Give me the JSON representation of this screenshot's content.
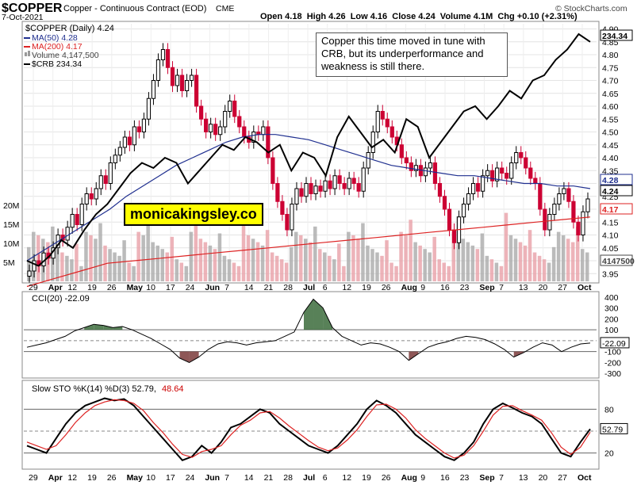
{
  "header": {
    "symbol": "$COPPER",
    "description": "Copper - Continuous Contract (EOD)",
    "exchange": "CME",
    "date": "7-Oct-2021",
    "ohlc": "Open 4.18  High 4.26  Low 4.16  Close 4.24  Volume 4.1M  Chg +0.10 (+2.31%)",
    "brand": "© StockCharts.com"
  },
  "legend": {
    "main": "$COPPER (Daily) 4.24",
    "ma50": "MA(50) 4.28",
    "ma200": "MA(200) 4.17",
    "volume": "Volume 4,147,500",
    "crb": "$CRB 234.34"
  },
  "annotation": "Copper this time moved in tune with CRB, but its underperformance and weakness is still there.",
  "watermark": "monicakingsley.co",
  "cci_label": "CCI(20) -22.09",
  "sto_label": {
    "k": "Slow STO %K(14) %D(3) 52.79,",
    "d": "48.64"
  },
  "colors": {
    "up": "#000000",
    "down": "#cc0033",
    "ma50": "#1f2f8f",
    "ma200": "#dd2222",
    "crb": "#000000",
    "cci_fill": "#3b6b3b",
    "cci_neg": "#7a3a3a"
  },
  "chart_data": [
    {
      "type": "candlestick",
      "title": "$COPPER (Daily) 4.24",
      "x_tick_labels": [
        "29",
        "Apr",
        "12",
        "19",
        "26",
        "May",
        "10",
        "17",
        "24",
        "Jun",
        "7",
        "14",
        "21",
        "28",
        "Jul",
        "6",
        "12",
        "19",
        "26",
        "Aug",
        "9",
        "16",
        "23",
        "Sep",
        "7",
        "13",
        "20",
        "27",
        "Oct"
      ],
      "y_tick_labels": [
        "3.95",
        "4.00",
        "4.05",
        "4.10",
        "4.15",
        "4.20",
        "4.25",
        "4.30",
        "4.35",
        "4.40",
        "4.45",
        "4.50",
        "4.55",
        "4.60",
        "4.65",
        "4.70",
        "4.75",
        "4.80",
        "4.85",
        "4.90"
      ],
      "ylim": [
        3.92,
        4.92
      ],
      "last_labels": {
        "ma50": "4.28",
        "close": "4.24",
        "ma200": "4.17",
        "crb": "234.34",
        "volume": "4147500"
      },
      "close_series": [
        3.96,
        4.0,
        3.98,
        4.03,
        4.01,
        4.05,
        4.1,
        4.08,
        4.13,
        4.18,
        4.14,
        4.22,
        4.26,
        4.24,
        4.28,
        4.33,
        4.3,
        4.38,
        4.41,
        4.44,
        4.48,
        4.45,
        4.52,
        4.5,
        4.55,
        4.63,
        4.7,
        4.78,
        4.82,
        4.75,
        4.68,
        4.72,
        4.66,
        4.7,
        4.72,
        4.6,
        4.55,
        4.5,
        4.53,
        4.49,
        4.52,
        4.58,
        4.62,
        4.56,
        4.52,
        4.48,
        4.46,
        4.5,
        4.49,
        4.52,
        4.4,
        4.3,
        4.23,
        4.18,
        4.12,
        4.22,
        4.28,
        4.25,
        4.3,
        4.26,
        4.29,
        4.27,
        4.31,
        4.28,
        4.33,
        4.3,
        4.28,
        4.32,
        4.3,
        4.27,
        4.36,
        4.42,
        4.5,
        4.58,
        4.55,
        4.52,
        4.48,
        4.45,
        4.4,
        4.38,
        4.35,
        4.37,
        4.33,
        4.36,
        4.38,
        4.3,
        4.25,
        4.2,
        4.12,
        4.07,
        4.17,
        4.22,
        4.26,
        4.3,
        4.27,
        4.33,
        4.35,
        4.31,
        4.36,
        4.34,
        4.32,
        4.38,
        4.42,
        4.4,
        4.36,
        4.32,
        4.3,
        4.2,
        4.12,
        4.18,
        4.22,
        4.26,
        4.28,
        4.23,
        4.15,
        4.1,
        4.19,
        4.24
      ],
      "ma50_series": [
        4.0,
        4.04,
        4.08,
        4.12,
        4.16,
        4.2,
        4.25,
        4.29,
        4.33,
        4.37,
        4.4,
        4.43,
        4.46,
        4.48,
        4.49,
        4.49,
        4.48,
        4.47,
        4.45,
        4.43,
        4.41,
        4.39,
        4.37,
        4.36,
        4.35,
        4.34,
        4.33,
        4.33,
        4.32,
        4.31,
        4.3,
        4.3,
        4.29,
        4.29,
        4.28
      ],
      "ma200_series": [
        3.9,
        3.93,
        3.96,
        3.99,
        4.0,
        4.01,
        4.02,
        4.03,
        4.04,
        4.05,
        4.06,
        4.07,
        4.08,
        4.09,
        4.1,
        4.11,
        4.12,
        4.13,
        4.14,
        4.15,
        4.16,
        4.17
      ],
      "crb_series": [
        4.0,
        3.98,
        4.02,
        4.08,
        4.05,
        4.12,
        4.18,
        4.22,
        4.28,
        4.34,
        4.38,
        4.36,
        4.4,
        4.38,
        4.3,
        4.35,
        4.4,
        4.45,
        4.43,
        4.48,
        4.46,
        4.42,
        4.45,
        4.35,
        4.42,
        4.4,
        4.33,
        4.48,
        4.56,
        4.5,
        4.44,
        4.47,
        4.42,
        4.55,
        4.52,
        4.4,
        4.46,
        4.52,
        4.58,
        4.6,
        4.55,
        4.6,
        4.66,
        4.63,
        4.7,
        4.72,
        4.78,
        4.82,
        4.88,
        4.85
      ]
    },
    {
      "type": "bar",
      "title": "Volume 4,147,500",
      "y_tick_labels": [
        "5M",
        "10M",
        "15M",
        "20M"
      ],
      "ylim": [
        0,
        25000000
      ]
    },
    {
      "type": "line",
      "title": "CCI(20) -22.09",
      "y_tick_labels": [
        "400",
        "300",
        "200",
        "100",
        "0",
        "-100",
        "-200",
        "-300"
      ],
      "ylim": [
        -320,
        420
      ],
      "last_label": "-22.09",
      "values": [
        -60,
        -40,
        -20,
        10,
        40,
        90,
        120,
        150,
        140,
        120,
        130,
        100,
        60,
        20,
        -30,
        -80,
        -160,
        -200,
        -150,
        -80,
        -30,
        -10,
        -20,
        -40,
        -20,
        -10,
        0,
        40,
        80,
        260,
        380,
        300,
        120,
        40,
        0,
        -40,
        -20,
        -30,
        -60,
        -100,
        -180,
        -120,
        -60,
        -30,
        -10,
        20,
        40,
        30,
        10,
        -30,
        -80,
        -150,
        -110,
        -60,
        -20,
        -40,
        -100,
        -60,
        -30,
        -22
      ]
    },
    {
      "type": "line",
      "title": "Slow STO %K(14) %D(3) 52.79, 48.64",
      "y_tick_labels": [
        "80",
        "20"
      ],
      "ylim": [
        0,
        100
      ],
      "series": [
        {
          "name": "%K(14)",
          "values": [
            30,
            25,
            20,
            40,
            60,
            75,
            85,
            90,
            95,
            92,
            94,
            85,
            70,
            55,
            40,
            25,
            10,
            15,
            30,
            20,
            35,
            55,
            60,
            70,
            80,
            75,
            60,
            50,
            40,
            30,
            25,
            20,
            30,
            45,
            60,
            80,
            92,
            85,
            75,
            60,
            45,
            35,
            25,
            15,
            10,
            20,
            35,
            60,
            80,
            88,
            82,
            75,
            70,
            60,
            40,
            20,
            15,
            35,
            52.79
          ]
        },
        {
          "name": "%D(3)",
          "values": [
            35,
            30,
            25,
            30,
            45,
            62,
            75,
            85,
            90,
            93,
            92,
            88,
            78,
            62,
            48,
            32,
            18,
            14,
            22,
            25,
            30,
            45,
            58,
            65,
            75,
            77,
            68,
            57,
            47,
            37,
            28,
            23,
            27,
            38,
            52,
            70,
            86,
            87,
            80,
            68,
            52,
            40,
            30,
            20,
            13,
            17,
            30,
            50,
            72,
            84,
            85,
            78,
            72,
            65,
            48,
            28,
            18,
            28,
            48.64
          ]
        }
      ],
      "last_labels": {
        "k": "52.79",
        "d": "48.64"
      }
    }
  ]
}
